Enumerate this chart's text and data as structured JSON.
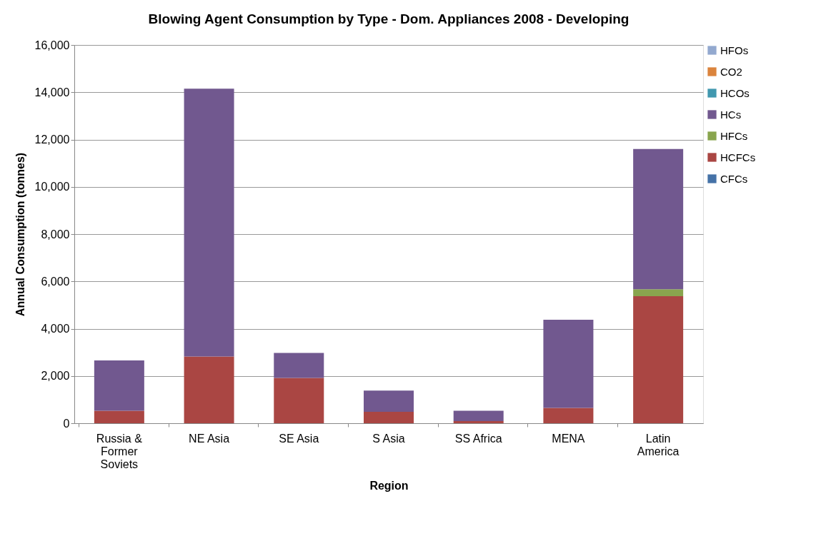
{
  "chart_data": {
    "type": "bar",
    "title": "Blowing Agent Consumption by Type - Dom. Appliances 2008 - Developing",
    "xlabel": "Region",
    "ylabel": "Annual Consumption (tonnes)",
    "categories": [
      "Russia & Former Soviets",
      "NE Asia",
      "SE Asia",
      "S Asia",
      "SS Africa",
      "MENA",
      "Latin America"
    ],
    "stacked": true,
    "ylim": [
      0,
      16000
    ],
    "yticks": [
      0,
      {
        "value": 2000,
        "label": "2,000"
      },
      {
        "value": 4000,
        "label": "4,000"
      },
      {
        "value": 6000,
        "label": "6,000"
      },
      {
        "value": 8000,
        "label": "8,000"
      },
      {
        "value": 10000,
        "label": "10,000"
      },
      {
        "value": 12000,
        "label": "12,000"
      },
      {
        "value": 14000,
        "label": "14,000"
      },
      {
        "value": 16000,
        "label": "16,000"
      }
    ],
    "grid": "y",
    "legend": "right",
    "series": [
      {
        "name": "CFCs",
        "color": "#4572a7",
        "values": [
          0,
          0,
          0,
          0,
          0,
          0,
          0
        ]
      },
      {
        "name": "HCFCs",
        "color": "#aa4643",
        "values": [
          530,
          2820,
          1920,
          480,
          90,
          650,
          5370
        ]
      },
      {
        "name": "HFCs",
        "color": "#89a54e",
        "values": [
          0,
          0,
          0,
          0,
          0,
          0,
          300
        ]
      },
      {
        "name": "HCs",
        "color": "#71588f",
        "values": [
          2130,
          11330,
          1050,
          900,
          440,
          3730,
          5930
        ]
      },
      {
        "name": "HCOs",
        "color": "#4198af",
        "values": [
          0,
          0,
          0,
          0,
          0,
          0,
          0
        ]
      },
      {
        "name": "CO2",
        "color": "#db843d",
        "values": [
          0,
          0,
          0,
          0,
          0,
          0,
          0
        ]
      },
      {
        "name": "HFOs",
        "color": "#93a9cf",
        "values": [
          0,
          0,
          0,
          0,
          0,
          0,
          0
        ]
      }
    ]
  }
}
